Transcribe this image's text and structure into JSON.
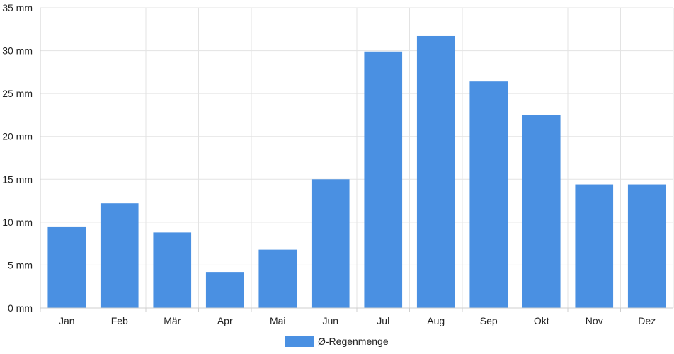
{
  "chart_data": {
    "type": "bar",
    "categories": [
      "Jan",
      "Feb",
      "Mär",
      "Apr",
      "Mai",
      "Jun",
      "Jul",
      "Aug",
      "Sep",
      "Okt",
      "Nov",
      "Dez"
    ],
    "series": [
      {
        "name": "Ø-Regenmenge",
        "values": [
          9.5,
          12.2,
          8.8,
          4.2,
          6.8,
          15.0,
          29.9,
          31.7,
          26.4,
          22.5,
          14.4,
          14.4
        ],
        "color": "#4a90e2"
      }
    ],
    "y_ticks": [
      "0 mm",
      "5 mm",
      "10 mm",
      "15 mm",
      "20 mm",
      "25 mm",
      "30 mm",
      "35 mm"
    ],
    "ylim": [
      0,
      35
    ],
    "grid": true,
    "legend": "bottom-center"
  }
}
